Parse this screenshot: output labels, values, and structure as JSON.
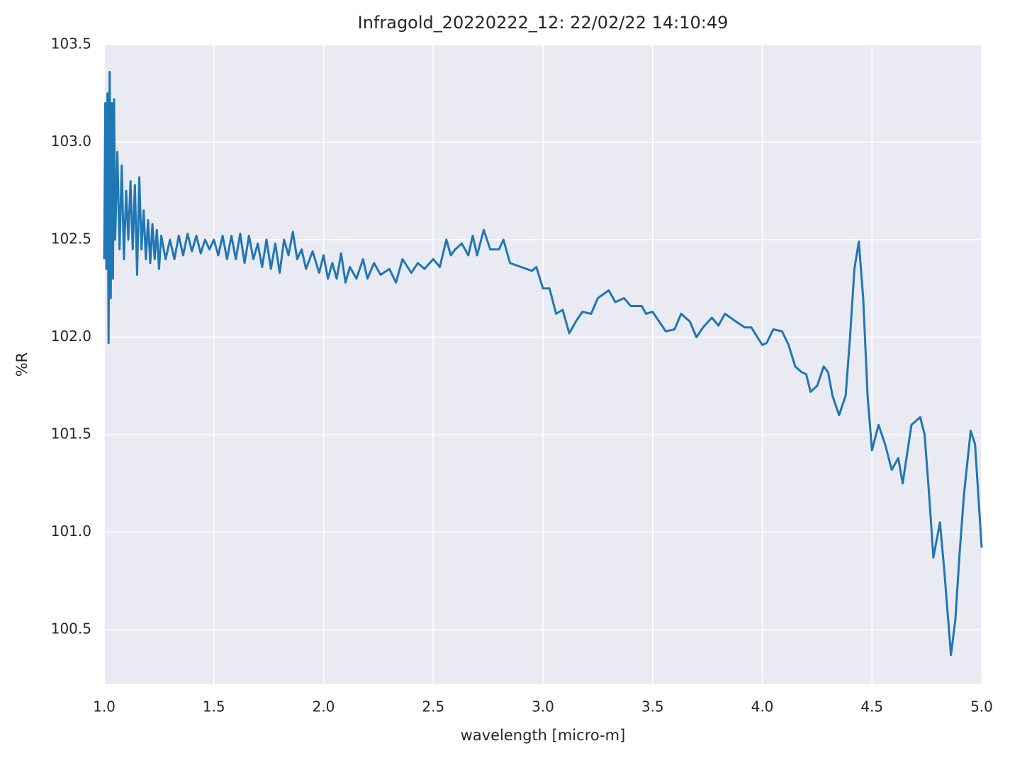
{
  "chart_data": {
    "type": "line",
    "title": "Infragold_20220222_12:  22/02/22 14:10:49",
    "x_label": "wavelength [micro-m]",
    "y_label": "%R",
    "xlim": [
      1,
      5
    ],
    "ylim": [
      100.22,
      103.5
    ],
    "xticks": [
      {
        "value": 1,
        "label": "1.0"
      },
      1.5,
      {
        "value": 2,
        "label": "2.0"
      },
      2.5,
      {
        "value": 3,
        "label": "3.0"
      },
      3.5,
      {
        "value": 4,
        "label": "4.0"
      },
      4.5,
      {
        "value": 5,
        "label": "5.0"
      }
    ],
    "yticks": [
      100.5,
      {
        "value": 101,
        "label": "101.0"
      },
      101.5,
      {
        "value": 102,
        "label": "102.0"
      },
      102.5,
      {
        "value": 103,
        "label": "103.0"
      },
      103.5
    ],
    "grid": true,
    "background": "#eaeaf2",
    "series": [
      {
        "color": "#1f77b4",
        "x": [
          1.0,
          1.005,
          1.01,
          1.015,
          1.02,
          1.025,
          1.03,
          1.035,
          1.04,
          1.045,
          1.05,
          1.06,
          1.07,
          1.08,
          1.09,
          1.1,
          1.11,
          1.12,
          1.13,
          1.14,
          1.15,
          1.16,
          1.17,
          1.18,
          1.19,
          1.2,
          1.21,
          1.22,
          1.23,
          1.24,
          1.25,
          1.26,
          1.28,
          1.3,
          1.32,
          1.34,
          1.36,
          1.38,
          1.4,
          1.42,
          1.44,
          1.46,
          1.48,
          1.5,
          1.52,
          1.54,
          1.56,
          1.58,
          1.6,
          1.62,
          1.64,
          1.66,
          1.68,
          1.7,
          1.72,
          1.74,
          1.76,
          1.78,
          1.8,
          1.82,
          1.84,
          1.86,
          1.88,
          1.9,
          1.92,
          1.95,
          1.98,
          2.0,
          2.02,
          2.04,
          2.06,
          2.08,
          2.1,
          2.12,
          2.15,
          2.18,
          2.2,
          2.23,
          2.26,
          2.3,
          2.33,
          2.36,
          2.4,
          2.43,
          2.46,
          2.5,
          2.53,
          2.56,
          2.58,
          2.6,
          2.63,
          2.66,
          2.68,
          2.7,
          2.73,
          2.76,
          2.8,
          2.82,
          2.85,
          2.9,
          2.95,
          2.97,
          3.0,
          3.03,
          3.06,
          3.09,
          3.12,
          3.15,
          3.18,
          3.22,
          3.25,
          3.3,
          3.33,
          3.37,
          3.4,
          3.45,
          3.47,
          3.5,
          3.53,
          3.56,
          3.6,
          3.63,
          3.67,
          3.7,
          3.73,
          3.77,
          3.8,
          3.83,
          3.88,
          3.92,
          3.95,
          4.0,
          4.02,
          4.05,
          4.09,
          4.12,
          4.15,
          4.18,
          4.2,
          4.22,
          4.25,
          4.28,
          4.3,
          4.32,
          4.35,
          4.38,
          4.4,
          4.42,
          4.44,
          4.46,
          4.48,
          4.5,
          4.53,
          4.56,
          4.59,
          4.62,
          4.64,
          4.66,
          4.68,
          4.72,
          4.74,
          4.76,
          4.78,
          4.81,
          4.83,
          4.86,
          4.88,
          4.9,
          4.92,
          4.95,
          4.97,
          5.0
        ],
        "values": [
          102.4,
          103.2,
          102.35,
          103.25,
          101.97,
          103.36,
          102.2,
          103.2,
          102.3,
          103.22,
          102.5,
          102.95,
          102.45,
          102.88,
          102.4,
          102.75,
          102.5,
          102.8,
          102.45,
          102.78,
          102.32,
          102.82,
          102.45,
          102.65,
          102.4,
          102.6,
          102.38,
          102.58,
          102.4,
          102.55,
          102.35,
          102.52,
          102.4,
          102.5,
          102.4,
          102.52,
          102.42,
          102.53,
          102.44,
          102.52,
          102.43,
          102.5,
          102.45,
          102.5,
          102.42,
          102.52,
          102.4,
          102.52,
          102.4,
          102.53,
          102.38,
          102.52,
          102.4,
          102.48,
          102.36,
          102.5,
          102.35,
          102.48,
          102.33,
          102.5,
          102.42,
          102.54,
          102.4,
          102.45,
          102.35,
          102.44,
          102.33,
          102.42,
          102.3,
          102.38,
          102.3,
          102.43,
          102.28,
          102.36,
          102.3,
          102.4,
          102.3,
          102.38,
          102.32,
          102.35,
          102.28,
          102.4,
          102.33,
          102.38,
          102.35,
          102.4,
          102.36,
          102.5,
          102.42,
          102.45,
          102.48,
          102.42,
          102.52,
          102.42,
          102.55,
          102.45,
          102.45,
          102.5,
          102.38,
          102.36,
          102.34,
          102.36,
          102.25,
          102.25,
          102.12,
          102.14,
          102.02,
          102.08,
          102.13,
          102.12,
          102.2,
          102.24,
          102.18,
          102.2,
          102.16,
          102.16,
          102.12,
          102.13,
          102.08,
          102.03,
          102.04,
          102.12,
          102.08,
          102.0,
          102.05,
          102.1,
          102.06,
          102.12,
          102.08,
          102.05,
          102.05,
          101.96,
          101.97,
          102.04,
          102.03,
          101.96,
          101.85,
          101.82,
          101.81,
          101.72,
          101.75,
          101.85,
          101.82,
          101.7,
          101.6,
          101.7,
          102.0,
          102.35,
          102.49,
          102.2,
          101.7,
          101.42,
          101.55,
          101.45,
          101.32,
          101.38,
          101.25,
          101.4,
          101.55,
          101.59,
          101.5,
          101.2,
          100.87,
          101.05,
          100.8,
          100.37,
          100.55,
          100.9,
          101.2,
          101.52,
          101.45,
          100.92
        ]
      }
    ]
  }
}
